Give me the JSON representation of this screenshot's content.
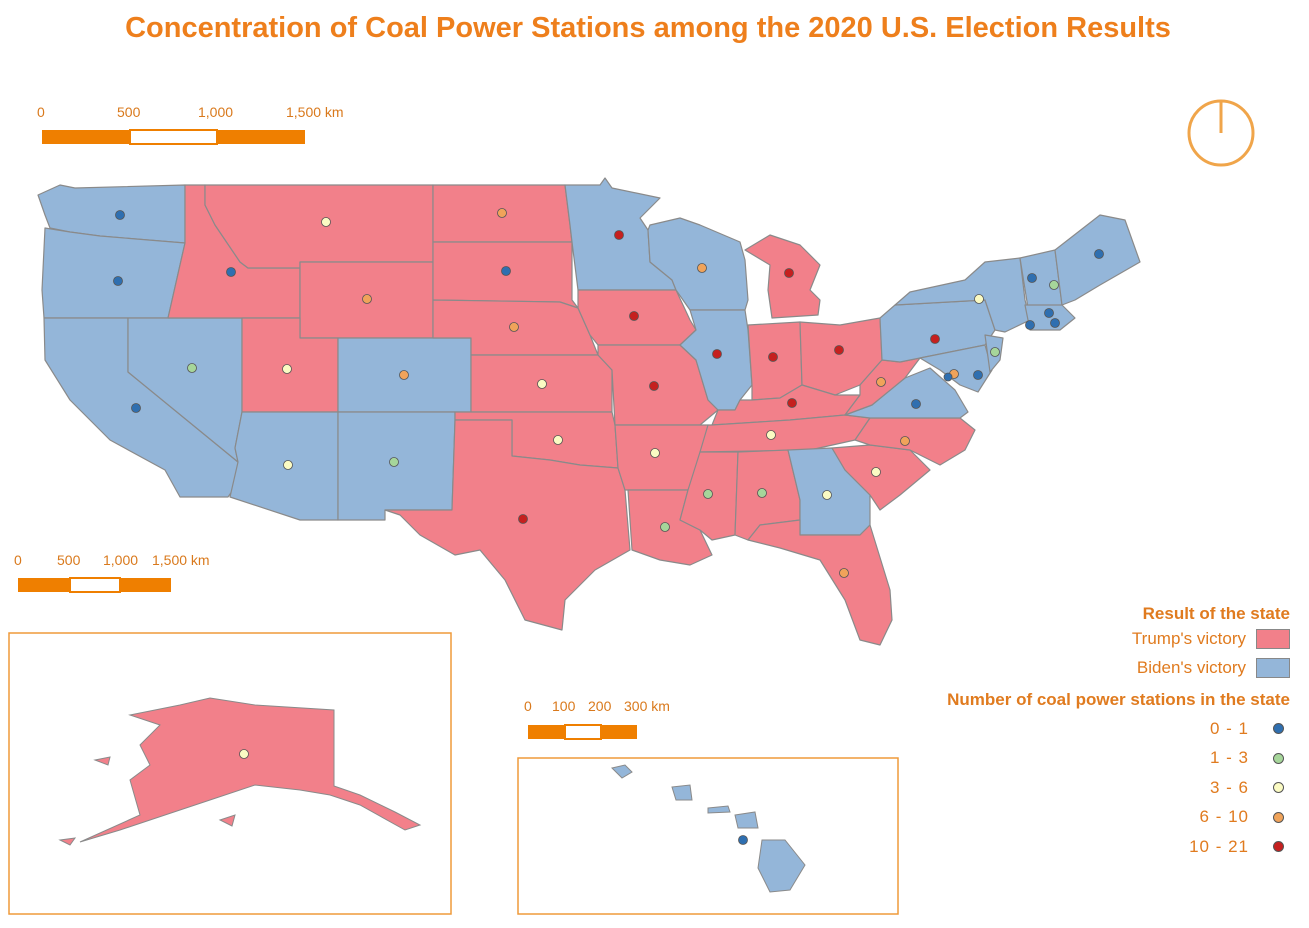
{
  "title": "Concentration of Coal Power Stations among the 2020 U.S. Election Results",
  "colors": {
    "trump": "#f2808a",
    "biden": "#94b6d9",
    "border": "#8a8a8a",
    "accent": "#ef7f00",
    "text": "#e07b1f"
  },
  "scalebars": {
    "main": [
      "0",
      "500",
      "1,000",
      "1,500 km"
    ],
    "alaska": [
      "0",
      "500",
      "1,000",
      "1,500 km"
    ],
    "hawaii": [
      "0",
      "100",
      "200",
      "300 km"
    ]
  },
  "north_arrow": "north-arrow-icon",
  "legend": {
    "result_title": "Result of the state",
    "trump_label": "Trump's victory",
    "biden_label": "Biden's victory",
    "count_title": "Number of coal power stations in the state",
    "classes": [
      {
        "label": "0 - 1",
        "color": "#2f6fb0"
      },
      {
        "label": "1 - 3",
        "color": "#a6d69a"
      },
      {
        "label": "3 - 6",
        "color": "#fbfbc3"
      },
      {
        "label": "6 - 10",
        "color": "#f0a35a"
      },
      {
        "label": "10 - 21",
        "color": "#c5201f"
      }
    ]
  }
}
